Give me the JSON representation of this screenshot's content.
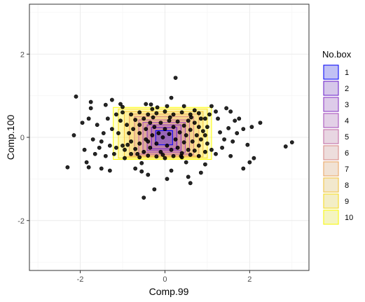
{
  "chart_data": {
    "type": "scatter",
    "xlabel": "Comp.99",
    "ylabel": "Comp.100",
    "xlim": [
      -3.2,
      3.4
    ],
    "ylim": [
      -3.2,
      3.2
    ],
    "x_ticks": [
      -2,
      0,
      2
    ],
    "x_tick_labels": [
      "-2",
      "0",
      "2"
    ],
    "y_ticks": [
      -2,
      0,
      2
    ],
    "y_tick_labels": [
      "-2",
      "0",
      "2"
    ],
    "grid": true,
    "legend": {
      "title": "No.box",
      "position": "right",
      "entries": [
        "1",
        "2",
        "3",
        "4",
        "5",
        "6",
        "7",
        "8",
        "9",
        "10"
      ]
    },
    "boxes": [
      {
        "label": "1",
        "xmin": -0.22,
        "xmax": 0.18,
        "ymin": -0.18,
        "ymax": 0.16,
        "color": "#0000ff"
      },
      {
        "label": "2",
        "xmin": -0.32,
        "xmax": 0.28,
        "ymin": -0.28,
        "ymax": 0.24,
        "color": "#6a1ccf"
      },
      {
        "label": "3",
        "xmin": -0.42,
        "xmax": 0.38,
        "ymin": -0.32,
        "ymax": 0.3,
        "color": "#8a33c8"
      },
      {
        "label": "4",
        "xmin": -0.52,
        "xmax": 0.48,
        "ymin": -0.36,
        "ymax": 0.36,
        "color": "#a84cbd"
      },
      {
        "label": "5",
        "xmin": -0.62,
        "xmax": 0.58,
        "ymin": -0.4,
        "ymax": 0.42,
        "color": "#c46aa6"
      },
      {
        "label": "6",
        "xmin": -0.72,
        "xmax": 0.68,
        "ymin": -0.42,
        "ymax": 0.5,
        "color": "#dc8a86"
      },
      {
        "label": "7",
        "xmin": -0.84,
        "xmax": 0.8,
        "ymin": -0.45,
        "ymax": 0.56,
        "color": "#eea560"
      },
      {
        "label": "8",
        "xmin": -0.96,
        "xmax": 0.9,
        "ymin": -0.47,
        "ymax": 0.62,
        "color": "#f7c53a"
      },
      {
        "label": "9",
        "xmin": -1.1,
        "xmax": 1.0,
        "ymin": -0.5,
        "ymax": 0.68,
        "color": "#fbe01a"
      },
      {
        "label": "10",
        "xmin": -1.22,
        "xmax": 1.1,
        "ymin": -0.53,
        "ymax": 0.72,
        "color": "#ffff00"
      }
    ],
    "points": [
      [
        -2.1,
        0.98
      ],
      [
        -1.75,
        0.85
      ],
      [
        -1.4,
        0.78
      ],
      [
        -1.25,
        0.9
      ],
      [
        -1.0,
        0.73
      ],
      [
        -0.45,
        0.8
      ],
      [
        -0.18,
        0.72
      ],
      [
        -0.33,
        0.79
      ],
      [
        0.15,
        0.95
      ],
      [
        0.45,
        0.75
      ],
      [
        0.25,
        1.43
      ],
      [
        1.1,
        0.75
      ],
      [
        1.2,
        0.62
      ],
      [
        1.45,
        0.7
      ],
      [
        1.55,
        0.62
      ],
      [
        1.65,
        0.4
      ],
      [
        2.25,
        0.35
      ],
      [
        2.05,
        0.25
      ],
      [
        1.85,
        0.2
      ],
      [
        1.7,
        0.1
      ],
      [
        1.5,
        0.22
      ],
      [
        1.3,
        0.12
      ],
      [
        1.4,
        -0.05
      ],
      [
        1.6,
        -0.1
      ],
      [
        1.95,
        -0.18
      ],
      [
        2.85,
        -0.22
      ],
      [
        3.0,
        -0.12
      ],
      [
        2.1,
        -0.5
      ],
      [
        2.0,
        -0.6
      ],
      [
        1.85,
        -0.75
      ],
      [
        1.55,
        -0.45
      ],
      [
        1.2,
        -0.4
      ],
      [
        -2.3,
        -0.72
      ],
      [
        -1.85,
        -0.6
      ],
      [
        -1.8,
        -0.72
      ],
      [
        -1.5,
        -0.75
      ],
      [
        -1.3,
        -0.8
      ],
      [
        -1.65,
        -0.4
      ],
      [
        -1.9,
        -0.3
      ],
      [
        -2.15,
        0.05
      ],
      [
        -1.95,
        0.35
      ],
      [
        -1.8,
        0.45
      ],
      [
        -1.6,
        0.3
      ],
      [
        -1.45,
        0.1
      ],
      [
        -1.25,
        0.2
      ],
      [
        -1.5,
        -0.1
      ],
      [
        -1.55,
        -0.25
      ],
      [
        -1.3,
        -0.2
      ],
      [
        -0.7,
        -0.75
      ],
      [
        -0.55,
        -0.82
      ],
      [
        -0.5,
        -1.45
      ],
      [
        -0.25,
        -1.25
      ],
      [
        0.05,
        -1.0
      ],
      [
        0.15,
        -0.8
      ],
      [
        0.55,
        -0.95
      ],
      [
        0.6,
        -1.1
      ],
      [
        0.85,
        -0.85
      ],
      [
        0.95,
        -0.65
      ],
      [
        -0.4,
        -0.9
      ],
      [
        -1.75,
        0.7
      ],
      [
        -1.15,
        0.55
      ],
      [
        -1.05,
        0.4
      ],
      [
        -1.1,
        0.1
      ],
      [
        -1.0,
        -0.2
      ],
      [
        -1.2,
        -0.4
      ],
      [
        -0.95,
        -0.5
      ],
      [
        -0.8,
        0.55
      ],
      [
        -0.6,
        0.6
      ],
      [
        -0.4,
        0.55
      ],
      [
        -0.2,
        0.58
      ],
      [
        0.0,
        0.62
      ],
      [
        0.2,
        0.55
      ],
      [
        0.4,
        0.6
      ],
      [
        0.6,
        0.55
      ],
      [
        0.8,
        0.58
      ],
      [
        0.95,
        0.45
      ],
      [
        1.0,
        0.25
      ],
      [
        0.95,
        0.05
      ],
      [
        1.0,
        -0.15
      ],
      [
        0.95,
        -0.35
      ],
      [
        0.8,
        -0.45
      ],
      [
        0.6,
        -0.42
      ],
      [
        0.4,
        -0.48
      ],
      [
        0.2,
        -0.45
      ],
      [
        0.0,
        -0.5
      ],
      [
        -0.2,
        -0.46
      ],
      [
        -0.4,
        -0.44
      ],
      [
        -0.6,
        -0.48
      ],
      [
        -0.8,
        -0.4
      ],
      [
        -0.95,
        -0.3
      ],
      [
        -0.9,
        0.3
      ],
      [
        -0.85,
        0.1
      ],
      [
        -0.8,
        -0.1
      ],
      [
        -0.7,
        0.42
      ],
      [
        -0.7,
        -0.28
      ],
      [
        -0.6,
        0.3
      ],
      [
        -0.6,
        0.1
      ],
      [
        -0.6,
        -0.15
      ],
      [
        -0.5,
        0.45
      ],
      [
        -0.5,
        -0.35
      ],
      [
        -0.45,
        0.2
      ],
      [
        -0.45,
        -0.05
      ],
      [
        -0.35,
        0.35
      ],
      [
        -0.35,
        -0.25
      ],
      [
        -0.3,
        0.05
      ],
      [
        -0.25,
        0.25
      ],
      [
        -0.2,
        -0.15
      ],
      [
        -0.15,
        0.1
      ],
      [
        -0.1,
        0.35
      ],
      [
        -0.1,
        -0.35
      ],
      [
        -0.05,
        0.0
      ],
      [
        0.0,
        0.2
      ],
      [
        0.05,
        -0.2
      ],
      [
        0.1,
        0.4
      ],
      [
        0.1,
        0.08
      ],
      [
        0.15,
        -0.3
      ],
      [
        0.2,
        0.25
      ],
      [
        0.25,
        -0.05
      ],
      [
        0.3,
        0.38
      ],
      [
        0.3,
        -0.25
      ],
      [
        0.35,
        0.12
      ],
      [
        0.4,
        -0.38
      ],
      [
        0.45,
        0.28
      ],
      [
        0.45,
        -0.12
      ],
      [
        0.5,
        0.05
      ],
      [
        0.55,
        0.4
      ],
      [
        0.55,
        -0.3
      ],
      [
        0.6,
        0.18
      ],
      [
        0.65,
        -0.1
      ],
      [
        0.7,
        0.35
      ],
      [
        0.7,
        -0.32
      ],
      [
        0.75,
        0.05
      ],
      [
        0.8,
        0.25
      ],
      [
        0.8,
        -0.2
      ],
      [
        0.85,
        0.45
      ],
      [
        0.85,
        -0.05
      ],
      [
        -0.75,
        0.2
      ],
      [
        -0.65,
        -0.4
      ],
      [
        -0.4,
        -0.1
      ],
      [
        -0.28,
        0.48
      ],
      [
        0.12,
        0.48
      ],
      [
        0.38,
        -0.45
      ],
      [
        -0.05,
        -0.42
      ],
      [
        0.62,
        0.48
      ],
      [
        -0.88,
        -0.18
      ],
      [
        0.9,
        0.15
      ],
      [
        -1.0,
        0.6
      ],
      [
        1.05,
        0.55
      ],
      [
        -1.15,
        -0.25
      ],
      [
        1.1,
        -0.3
      ],
      [
        1.25,
        0.45
      ],
      [
        -1.35,
        0.45
      ],
      [
        1.35,
        -0.25
      ],
      [
        -1.4,
        -0.45
      ],
      [
        0.7,
        0.65
      ],
      [
        -0.3,
        0.68
      ],
      [
        -1.7,
        -0.05
      ],
      [
        1.75,
        0.45
      ],
      [
        -1.05,
        0.8
      ],
      [
        0.5,
        -0.6
      ],
      [
        -0.55,
        -0.62
      ],
      [
        0.05,
        0.75
      ]
    ]
  }
}
